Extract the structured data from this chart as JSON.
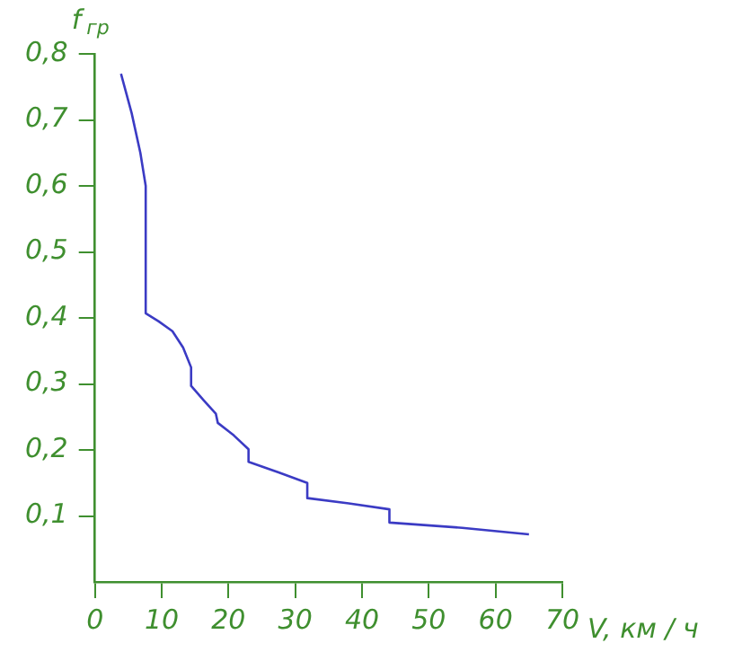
{
  "chart_data": {
    "type": "line",
    "xlabel": "V, км / ч",
    "ylabel": "f$_{гр}$",
    "x": [
      3.9,
      5.5,
      6.8,
      7.6,
      7.6,
      9.5,
      11.6,
      13.2,
      14.4,
      14.4,
      16.3,
      18.1,
      18.4,
      20.8,
      23.0,
      23.0,
      27.5,
      31.8,
      31.8,
      38.0,
      44.1,
      44.1,
      55.0,
      65.0
    ],
    "series": [
      {
        "color": "#3b3bc4",
        "values": [
          0.77,
          0.71,
          0.65,
          0.6,
          0.407,
          0.395,
          0.38,
          0.355,
          0.325,
          0.297,
          0.275,
          0.255,
          0.241,
          0.222,
          0.201,
          0.182,
          0.166,
          0.15,
          0.127,
          0.119,
          0.11,
          0.09,
          0.082,
          0.072
        ]
      }
    ],
    "xlim": [
      0,
      70
    ],
    "xticks": [
      0,
      10,
      20,
      30,
      40,
      50,
      60,
      70
    ],
    "ylim": [
      0,
      0.8
    ],
    "yticks": [
      {
        "value": 0.1,
        "label": "0,1"
      },
      {
        "value": 0.2,
        "label": "0,2"
      },
      {
        "value": 0.3,
        "label": "0,3"
      },
      {
        "value": 0.4,
        "label": "0,4"
      },
      {
        "value": 0.5,
        "label": "0,5"
      },
      {
        "value": 0.6,
        "label": "0,6"
      },
      {
        "value": 0.7,
        "label": "0,7"
      },
      {
        "value": 0.8,
        "label": "0,8"
      }
    ],
    "grid": false,
    "legend": false,
    "marker": "none",
    "line_style": "solid"
  }
}
